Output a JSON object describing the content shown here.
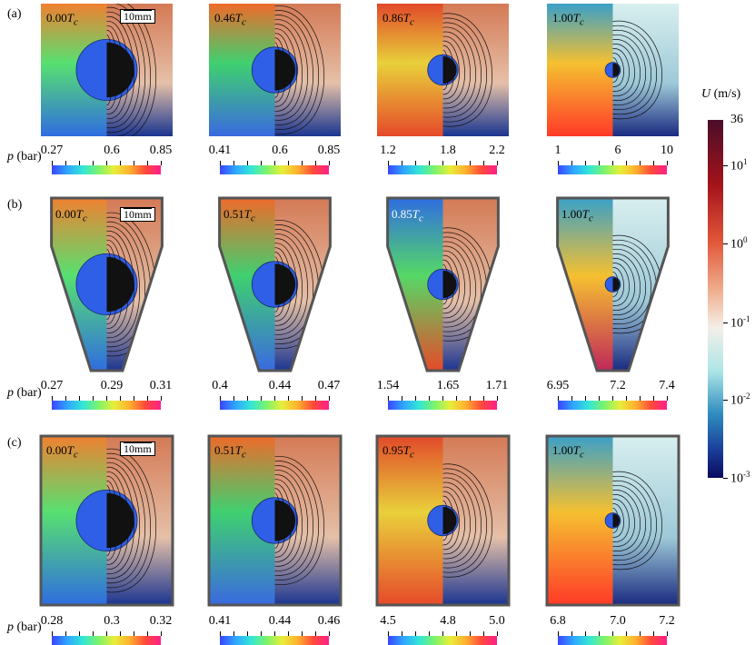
{
  "rows": [
    {
      "label": "(a)",
      "panels": [
        {
          "time": "0.00",
          "scale": "10mm",
          "colorbar": {
            "ticks": [
              "0.27",
              "0.6",
              "0.85"
            ]
          }
        },
        {
          "time": "0.46",
          "colorbar": {
            "ticks": [
              "0.41",
              "0.6",
              "0.85"
            ]
          }
        },
        {
          "time": "0.86",
          "colorbar": {
            "ticks": [
              "1.2",
              "1.8",
              "2.2"
            ]
          }
        },
        {
          "time": "1.00",
          "colorbar": {
            "ticks": [
              "1",
              "6",
              "10"
            ]
          }
        }
      ]
    },
    {
      "label": "(b)",
      "panels": [
        {
          "time": "0.00",
          "scale": "10mm",
          "colorbar": {
            "ticks": [
              "0.27",
              "0.29",
              "0.31"
            ]
          }
        },
        {
          "time": "0.51",
          "colorbar": {
            "ticks": [
              "0.4",
              "0.44",
              "0.47"
            ]
          }
        },
        {
          "time": "0.85",
          "colorbar": {
            "ticks": [
              "1.54",
              "1.65",
              "1.71"
            ]
          }
        },
        {
          "time": "1.00",
          "colorbar": {
            "ticks": [
              "6.95",
              "7.2",
              "7.4"
            ]
          }
        }
      ]
    },
    {
      "label": "(c)",
      "panels": [
        {
          "time": "0.00",
          "scale": "10mm",
          "colorbar": {
            "ticks": [
              "0.28",
              "0.3",
              "0.32"
            ]
          }
        },
        {
          "time": "0.51",
          "colorbar": {
            "ticks": [
              "0.41",
              "0.44",
              "0.46"
            ]
          }
        },
        {
          "time": "0.95",
          "colorbar": {
            "ticks": [
              "4.5",
              "4.8",
              "5.0"
            ]
          }
        },
        {
          "time": "1.00",
          "colorbar": {
            "ticks": [
              "6.8",
              "7.0",
              "7.2"
            ]
          }
        }
      ]
    }
  ],
  "time_unit": "T",
  "time_sub": "c",
  "pressure_label": "p",
  "pressure_unit": "(bar)",
  "velocity_bar": {
    "label": "U",
    "unit": "(m/s)",
    "top": "36",
    "ticks": [
      {
        "base": "10",
        "exp": "1"
      },
      {
        "base": "10",
        "exp": "0"
      },
      {
        "base": "10",
        "exp": "-1"
      },
      {
        "base": "10",
        "exp": "-2"
      },
      {
        "base": "10",
        "exp": "-3"
      }
    ]
  }
}
